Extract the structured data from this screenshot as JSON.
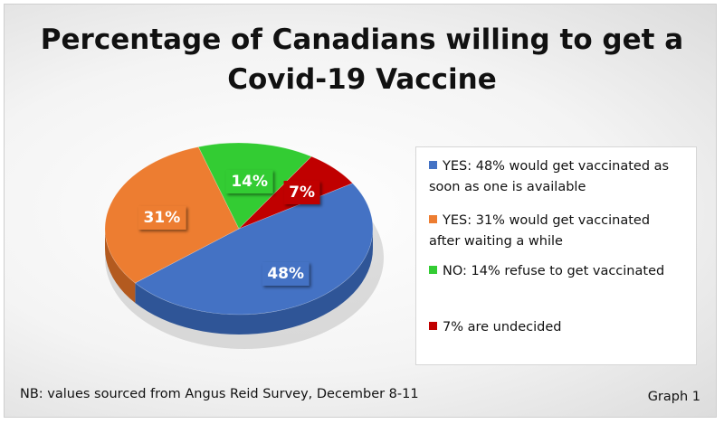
{
  "chart_data": {
    "type": "pie",
    "title_lines": [
      "Percentage of Canadians willing to get a",
      "Covid-19 Vaccine"
    ],
    "slices": [
      {
        "value": 48,
        "label": "48%",
        "legend": "YES: 48% would get vaccinated as soon as one is available",
        "legend_lines": [
          "YES: 48% would get vaccinated as",
          "soon as one is available"
        ],
        "color": "#4472C4",
        "side": "#2F5597"
      },
      {
        "value": 31,
        "label": "31%",
        "legend": "YES: 31% would get vaccinated after waiting a while",
        "legend_lines": [
          "YES: 31% would get vaccinated",
          "after waiting a while"
        ],
        "color": "#ED7D31",
        "side": "#B35A1F"
      },
      {
        "value": 14,
        "label": "14%",
        "legend": "NO: 14% refuse to get vaccinated",
        "legend_lines": [
          "NO: 14% refuse to get vaccinated"
        ],
        "color": "#33CC33",
        "side": "#1E8C1E"
      },
      {
        "value": 7,
        "label": "7%",
        "legend": "7% are undecided",
        "legend_lines": [
          "7% are undecided"
        ],
        "color": "#C00000",
        "side": "#7F0000"
      }
    ],
    "legend_position": "right"
  },
  "footer": {
    "note": "NB: values sourced from Angus Reid Survey, December 8-11",
    "graph_label": "Graph 1"
  }
}
